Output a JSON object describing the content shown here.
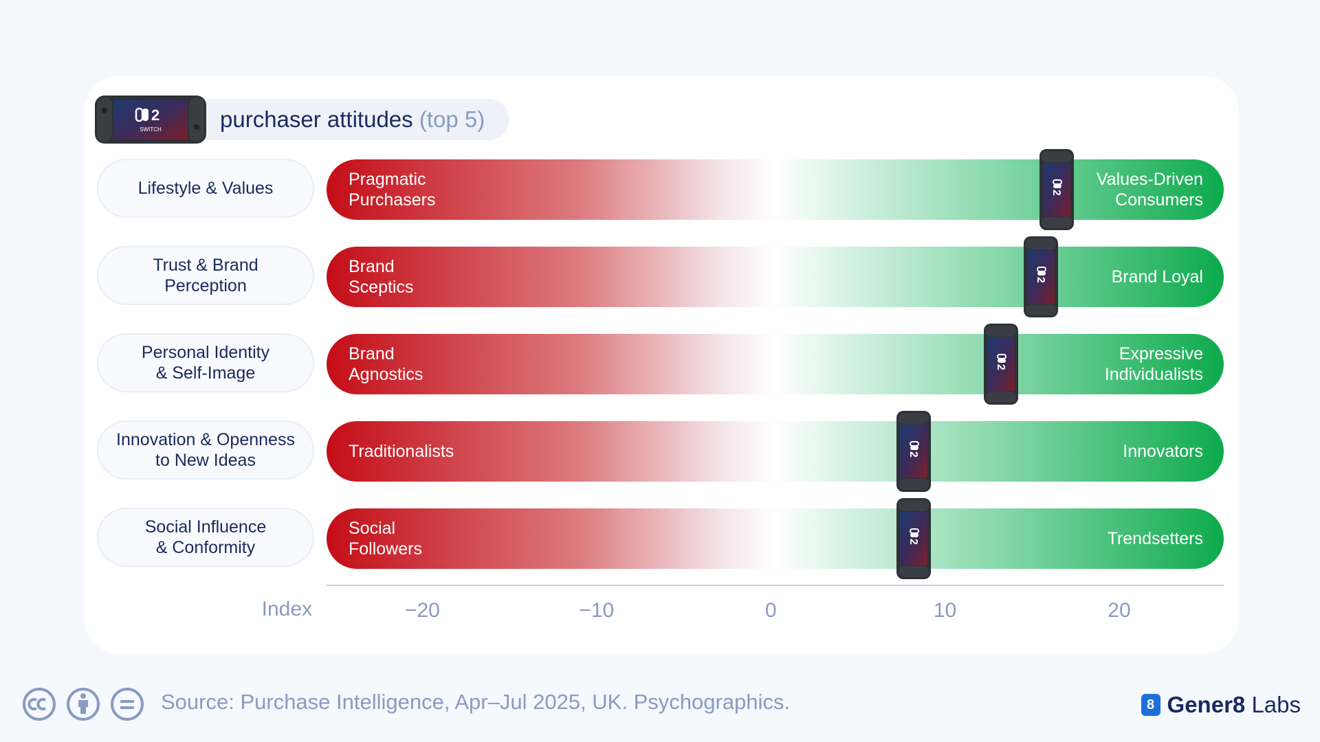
{
  "header": {
    "title": "purchaser attitudes",
    "subtitle": "(top 5)",
    "logo_text": "2",
    "logo_caption": "SWITCH"
  },
  "chart_data": {
    "type": "bar",
    "title": "purchaser attitudes (top 5)",
    "xlabel": "Index",
    "xlim": [
      -25.5,
      26
    ],
    "xticks": [
      -20,
      -10,
      0,
      10,
      20
    ],
    "xtick_labels": [
      "−20",
      "−10",
      "0",
      "10",
      "20"
    ],
    "categories": [
      "Lifestyle & Values",
      "Trust & Brand\nPerception",
      "Personal Identity\n& Self-Image",
      "Innovation & Openness\nto New Ideas",
      "Social Influence\n& Conformity"
    ],
    "left_poles": [
      "Pragmatic\nPurchasers",
      "Brand\nSceptics",
      "Brand\nAgnostics",
      "Traditionalists",
      "Social\nFollowers"
    ],
    "right_poles": [
      "Values-Driven\nConsumers",
      "Brand Loyal",
      "Expressive\nIndividualists",
      "Innovators",
      "Trendsetters"
    ],
    "values": [
      16.4,
      15.5,
      13.2,
      8.2,
      8.2
    ],
    "colors": {
      "negative": "#c40d17",
      "positive": "#0daa4c",
      "text": "#1a2a5e",
      "muted": "#8a9ac0"
    },
    "grid": false
  },
  "footer": {
    "source": "Source: Purchase Intelligence, Apr–Jul 2025, UK. Psychographics.",
    "license_icons": [
      "cc-icon",
      "attribution-icon",
      "no-derivatives-icon"
    ],
    "brand_badge": "8",
    "brand_bold": "Gener8",
    "brand_light": "Labs"
  }
}
